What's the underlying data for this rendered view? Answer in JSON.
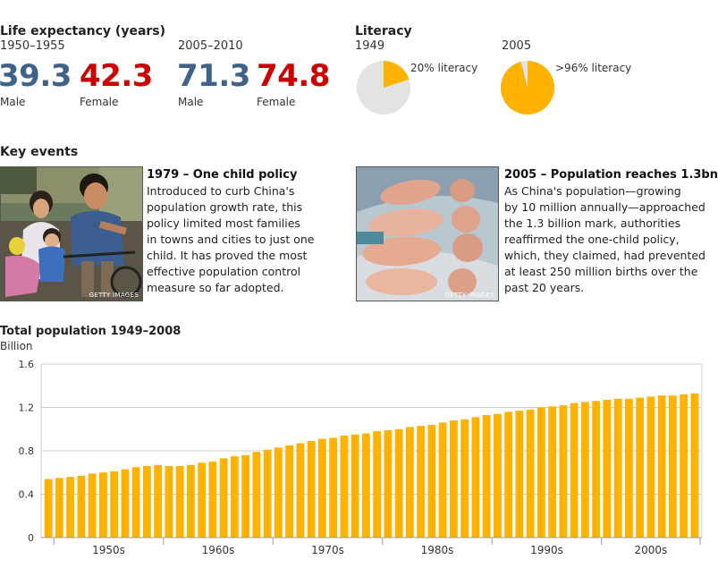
{
  "life_expectancy": {
    "title": "Life expectancy (years)",
    "periods": [
      {
        "label": "1950–1955",
        "male": "39.3",
        "female": "42.3"
      },
      {
        "label": "2005–2010",
        "male": "71.3",
        "female": "74.8"
      }
    ],
    "male_label": "Male",
    "female_label": "Female",
    "colors": {
      "male": "#3f6289",
      "female": "#cc0000"
    }
  },
  "literacy": {
    "title": "Literacy",
    "charts": [
      {
        "year": "1949",
        "label": "20% literacy",
        "fraction": 0.2
      },
      {
        "year": "2005",
        "label": ">96% literacy",
        "fraction": 0.96
      }
    ],
    "colors": {
      "fill": "#ffb300",
      "rest": "#e3e3e3"
    }
  },
  "key_events": {
    "title": "Key events",
    "events": [
      {
        "title": "1979 – One child policy",
        "lines": [
          "Introduced to curb China's",
          "population growth rate, this",
          "policy limited most families",
          "in towns and cities to just one",
          "child. It has proved the most",
          "effective population control",
          "measure so far adopted."
        ],
        "credit": "GETTY IMAGES"
      },
      {
        "title": "2005 – Population reaches 1.3bn",
        "lines": [
          "As China's population—growing",
          "by 10 million annually—approached",
          "the 1.3 billion mark, authorities",
          "reaffirmed the one-child policy,",
          "which, they claimed, had prevented",
          "at least 250 million births over the",
          "past 20 years."
        ],
        "credit": "GETTY IMAGES"
      }
    ]
  },
  "chart_data": {
    "type": "bar",
    "title": "Total population 1949–2008",
    "ylabel": "Billion",
    "ylim": [
      0,
      1.6
    ],
    "yticks": [
      "0",
      "0.4",
      "0.8",
      "1.2",
      "1.6"
    ],
    "xticklabels": [
      "1950s",
      "1960s",
      "1970s",
      "1980s",
      "1990s",
      "2000s"
    ],
    "x": [
      1949,
      1950,
      1951,
      1952,
      1953,
      1954,
      1955,
      1956,
      1957,
      1958,
      1959,
      1960,
      1961,
      1962,
      1963,
      1964,
      1965,
      1966,
      1967,
      1968,
      1969,
      1970,
      1971,
      1972,
      1973,
      1974,
      1975,
      1976,
      1977,
      1978,
      1979,
      1980,
      1981,
      1982,
      1983,
      1984,
      1985,
      1986,
      1987,
      1988,
      1989,
      1990,
      1991,
      1992,
      1993,
      1994,
      1995,
      1996,
      1997,
      1998,
      1999,
      2000,
      2001,
      2002,
      2003,
      2004,
      2005,
      2006,
      2007,
      2008
    ],
    "values": [
      0.54,
      0.55,
      0.56,
      0.57,
      0.59,
      0.6,
      0.61,
      0.63,
      0.65,
      0.66,
      0.67,
      0.66,
      0.66,
      0.67,
      0.69,
      0.7,
      0.73,
      0.75,
      0.76,
      0.79,
      0.81,
      0.83,
      0.85,
      0.87,
      0.89,
      0.91,
      0.92,
      0.94,
      0.95,
      0.96,
      0.98,
      0.99,
      1.0,
      1.02,
      1.03,
      1.04,
      1.06,
      1.08,
      1.09,
      1.11,
      1.13,
      1.14,
      1.16,
      1.17,
      1.18,
      1.2,
      1.21,
      1.22,
      1.24,
      1.25,
      1.26,
      1.27,
      1.28,
      1.28,
      1.29,
      1.3,
      1.31,
      1.31,
      1.32,
      1.33
    ],
    "grid": true,
    "color": "#ffb300"
  }
}
